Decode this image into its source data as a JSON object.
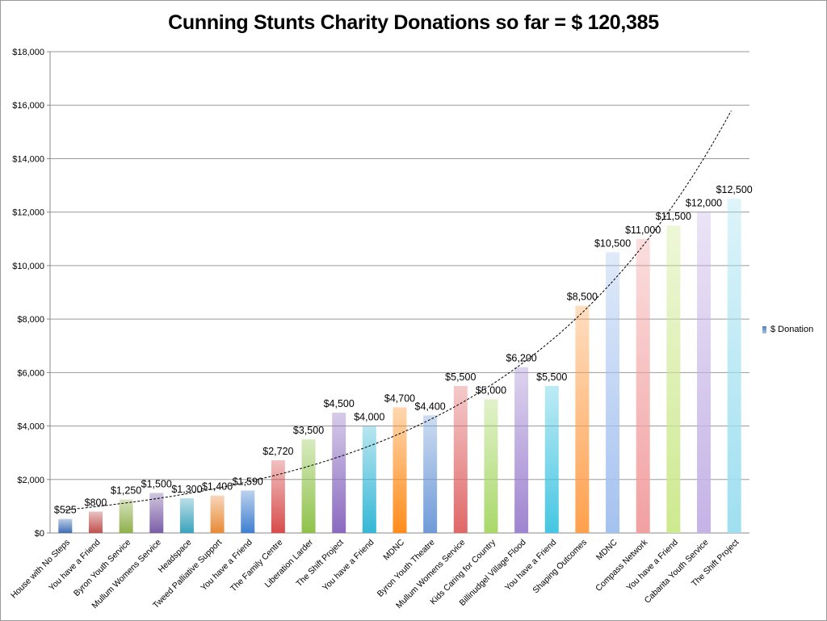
{
  "chart_data": {
    "type": "bar",
    "title": "Cunning Stunts Charity Donations so far = $  120,385",
    "ylim": [
      0,
      18000
    ],
    "yticks": [
      0,
      2000,
      4000,
      6000,
      8000,
      10000,
      12000,
      14000,
      16000,
      18000
    ],
    "ytick_labels": [
      "$0",
      "$2,000",
      "$4,000",
      "$6,000",
      "$8,000",
      "$10,000",
      "$12,000",
      "$14,000",
      "$16,000",
      "$18,000"
    ],
    "grid": true,
    "legend_position": "right",
    "trendline": "exponential (dashed)",
    "categories": [
      "House with No Steps",
      "You have a Friend",
      "Byron Youth Service",
      "Mullum Womens Service",
      "Headspace",
      "Tweed Palliative Support",
      "You have a Friend",
      "The Family Centre",
      "Liberation Larder",
      "The Shift Project",
      "You have a Friend",
      "MDNC",
      "Byron Youth Theatre",
      "Mullum Womens Service",
      "Kids Caring for Country",
      "Billinudgel Village Flood",
      "You have a Friend",
      "Shaping Outcomes",
      "MDNC",
      "Compass Network",
      "You have a Friend",
      "Cabarita Youth Service",
      "The Shift Project"
    ],
    "series": [
      {
        "name": "$ Donation",
        "values": [
          525,
          800,
          1250,
          1500,
          1300,
          1400,
          1590,
          2720,
          3500,
          4500,
          4000,
          4700,
          4400,
          5500,
          5000,
          6200,
          5500,
          8500,
          10500,
          11000,
          11500,
          12000,
          12500
        ]
      }
    ],
    "data_labels": [
      "$525",
      "$800",
      "$1,250",
      "$1,500",
      "$1,300",
      "$1,400",
      "$1,590",
      "$2,720",
      "$3,500",
      "$4,500",
      "$4,000",
      "$4,700",
      "$4,400",
      "$5,500",
      "$5,000",
      "$6,200",
      "$5,500",
      "$8,500",
      "$10,500",
      "$11,000",
      "$11,500",
      "$12,000",
      "$12,500"
    ],
    "bar_colors": [
      "#3f6fb5",
      "#c0504d",
      "#8fb04a",
      "#7b5ea7",
      "#3aa3bd",
      "#e88a35",
      "#3f7fd0",
      "#d84c4c",
      "#8fc24a",
      "#8a6ac0",
      "#35b7d6",
      "#ff8c1a",
      "#6f9ad8",
      "#e06868",
      "#a9d86a",
      "#9f84cf",
      "#45c6e2",
      "#ffa04d",
      "#a4c2ef",
      "#f2a0a0",
      "#cde98f",
      "#c5b3e6",
      "#9fdff0"
    ]
  }
}
